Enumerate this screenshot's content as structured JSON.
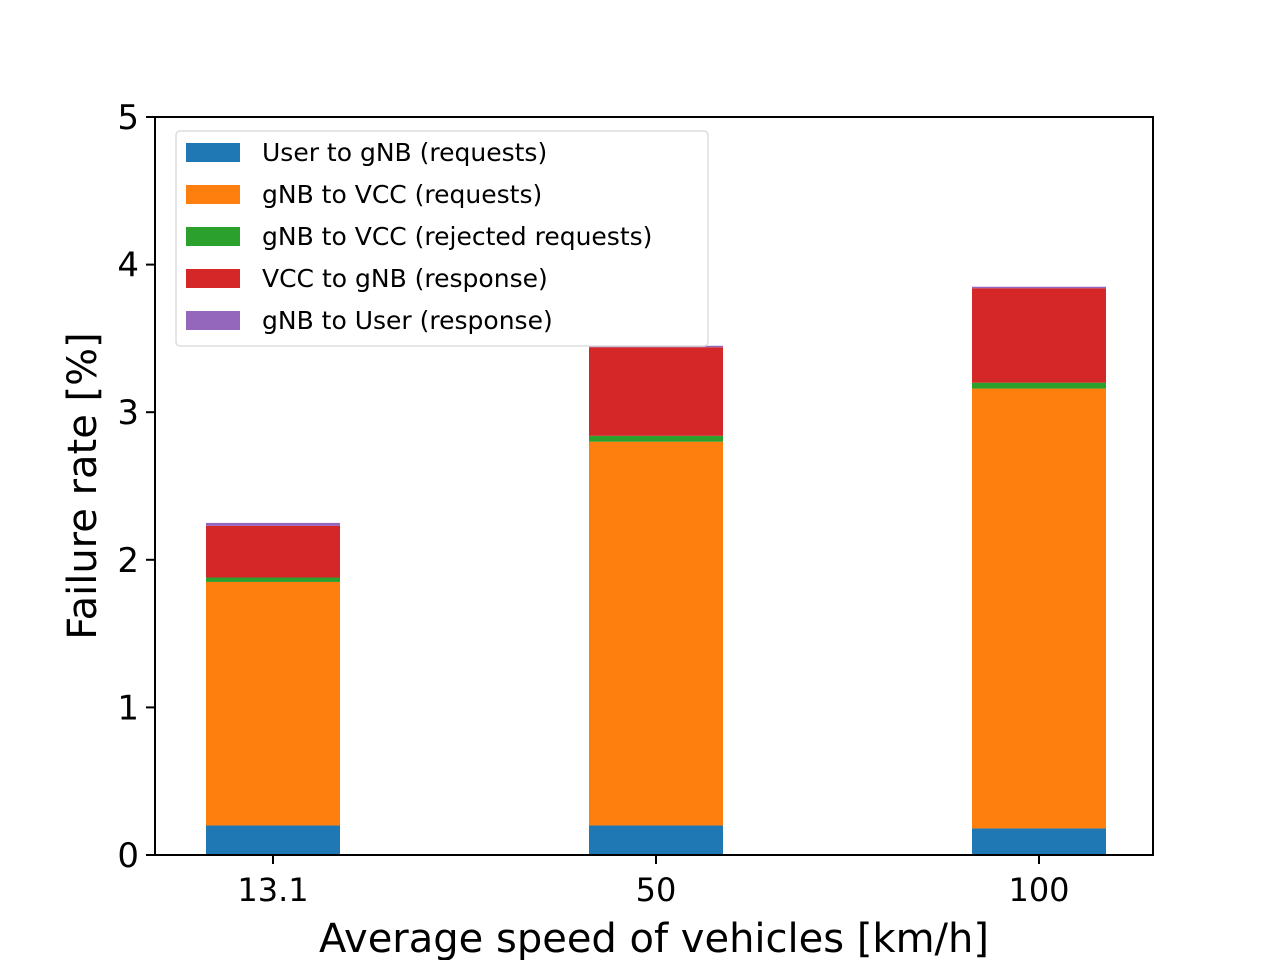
{
  "chart_data": {
    "type": "bar",
    "stacked": true,
    "title": "",
    "xlabel": "Average speed of vehicles [km/h]",
    "ylabel": "Failure rate [%]",
    "categories": [
      "13.1",
      "50",
      "100"
    ],
    "ylim": [
      0,
      5
    ],
    "yticks": [
      "0",
      "1",
      "2",
      "3",
      "4",
      "5"
    ],
    "grid": false,
    "legend_position": "top-left",
    "series": [
      {
        "name": "User to gNB (requests)",
        "color": "#1f77b4",
        "values": [
          0.2,
          0.2,
          0.18
        ]
      },
      {
        "name": "gNB to VCC (requests)",
        "color": "#ff7f0e",
        "values": [
          1.65,
          2.6,
          2.98
        ]
      },
      {
        "name": "gNB to VCC (rejected requests)",
        "color": "#2ca02c",
        "values": [
          0.03,
          0.04,
          0.04
        ]
      },
      {
        "name": "VCC to gNB (response)",
        "color": "#d62728",
        "values": [
          0.35,
          0.6,
          0.64
        ]
      },
      {
        "name": "gNB to User (response)",
        "color": "#9467bd",
        "values": [
          0.02,
          0.01,
          0.01
        ]
      }
    ]
  }
}
